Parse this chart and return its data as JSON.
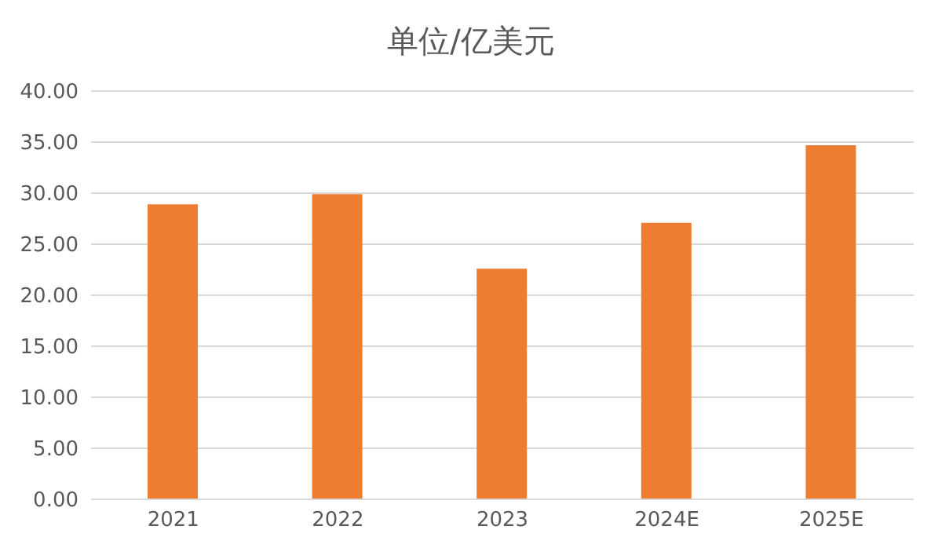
{
  "chart_data": {
    "type": "bar",
    "title": "单位/亿美元",
    "categories": [
      "2021",
      "2022",
      "2023",
      "2024E",
      "2025E"
    ],
    "values": [
      28.9,
      29.9,
      22.6,
      27.1,
      34.7
    ],
    "color": "#ed7d31",
    "ylim": [
      0,
      40
    ],
    "yticks": [
      {
        "value": 0,
        "label": "0.00"
      },
      {
        "value": 5,
        "label": "5.00"
      },
      {
        "value": 10,
        "label": "10.00"
      },
      {
        "value": 15,
        "label": "15.00"
      },
      {
        "value": 20,
        "label": "20.00"
      },
      {
        "value": 25,
        "label": "25.00"
      },
      {
        "value": 30,
        "label": "30.00"
      },
      {
        "value": 35,
        "label": "35.00"
      },
      {
        "value": 40,
        "label": "40.00"
      }
    ],
    "grid": "y",
    "legend": false
  }
}
